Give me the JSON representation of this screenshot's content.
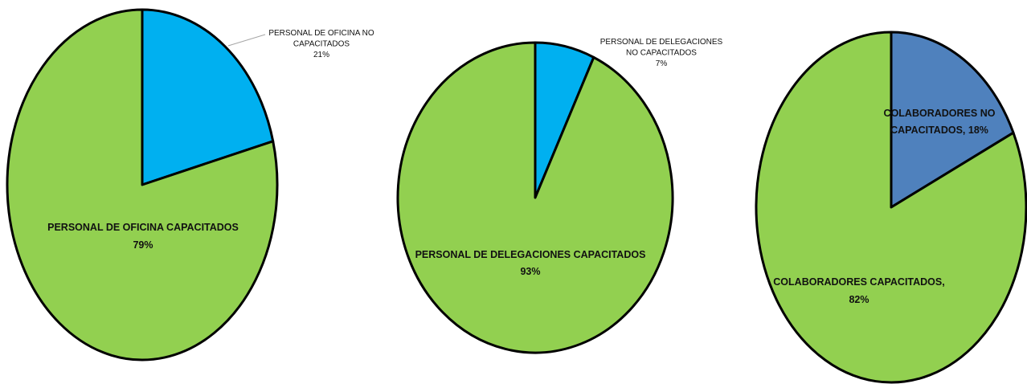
{
  "chart_data": [
    {
      "type": "pie",
      "slices": [
        {
          "label": "PERSONAL DE OFICINA NO CAPACITADOS",
          "value": 21,
          "value_text": "21%",
          "color": "#00b0f0"
        },
        {
          "label": "PERSONAL DE OFICINA CAPACITADOS",
          "value": 79,
          "value_text": "79%",
          "color": "#92d050"
        }
      ]
    },
    {
      "type": "pie",
      "slices": [
        {
          "label": "PERSONAL DE DELEGACIONES NO CAPACITADOS",
          "value": 7,
          "value_text": "7%",
          "color": "#00b0f0"
        },
        {
          "label": "PERSONAL DE DELEGACIONES CAPACITADOS",
          "value": 93,
          "value_text": "93%",
          "color": "#92d050"
        }
      ]
    },
    {
      "type": "pie",
      "slices": [
        {
          "label": "COLABORADORES NO CAPACITADOS, 18%",
          "value": 18,
          "value_text": "",
          "color": "#4f81bd"
        },
        {
          "label": "COLABORADORES CAPACITADOS,",
          "value": 82,
          "value_text": "82%",
          "color": "#92d050"
        }
      ]
    }
  ]
}
